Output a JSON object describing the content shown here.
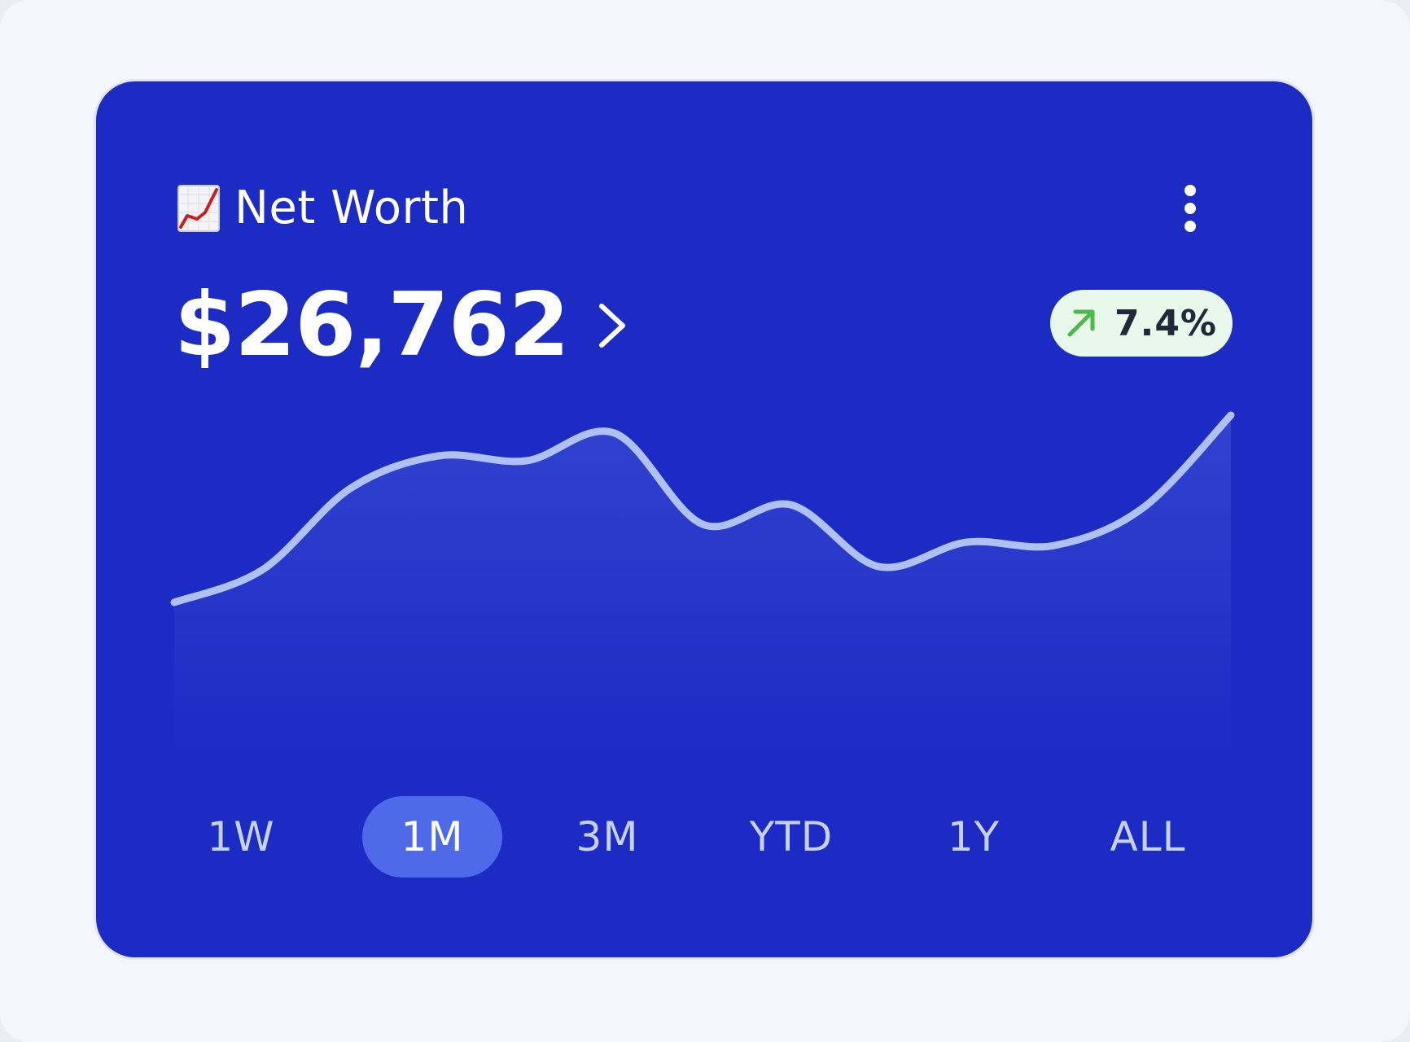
{
  "card": {
    "title": "Net Worth",
    "title_icon": "chart-increasing-emoji",
    "menu_icon": "more-vertical-icon",
    "value": "$26,762",
    "value_icon": "chevron-right-icon",
    "change": {
      "text": "7.4%",
      "icon": "arrow-up-right-icon",
      "color": "#4cb84a"
    }
  },
  "colors": {
    "card_bg": "#1c2bc4",
    "line": "#aec0f4",
    "active_tab": "#4e6ae9",
    "badge_bg": "#e8f8ea"
  },
  "chart_data": {
    "type": "line",
    "y": [
      8.5,
      10.5,
      15.5,
      17.5,
      17.2,
      18.9,
      13.3,
      14.5,
      10.7,
      12.2,
      12.0,
      14.3,
      20.0
    ],
    "ylim": [
      0,
      20
    ],
    "grid": false,
    "fill": "area"
  },
  "tabs": [
    {
      "label": "1W",
      "active": false
    },
    {
      "label": "1M",
      "active": true
    },
    {
      "label": "3M",
      "active": false
    },
    {
      "label": "YTD",
      "active": false
    },
    {
      "label": "1Y",
      "active": false
    },
    {
      "label": "ALL",
      "active": false
    }
  ]
}
